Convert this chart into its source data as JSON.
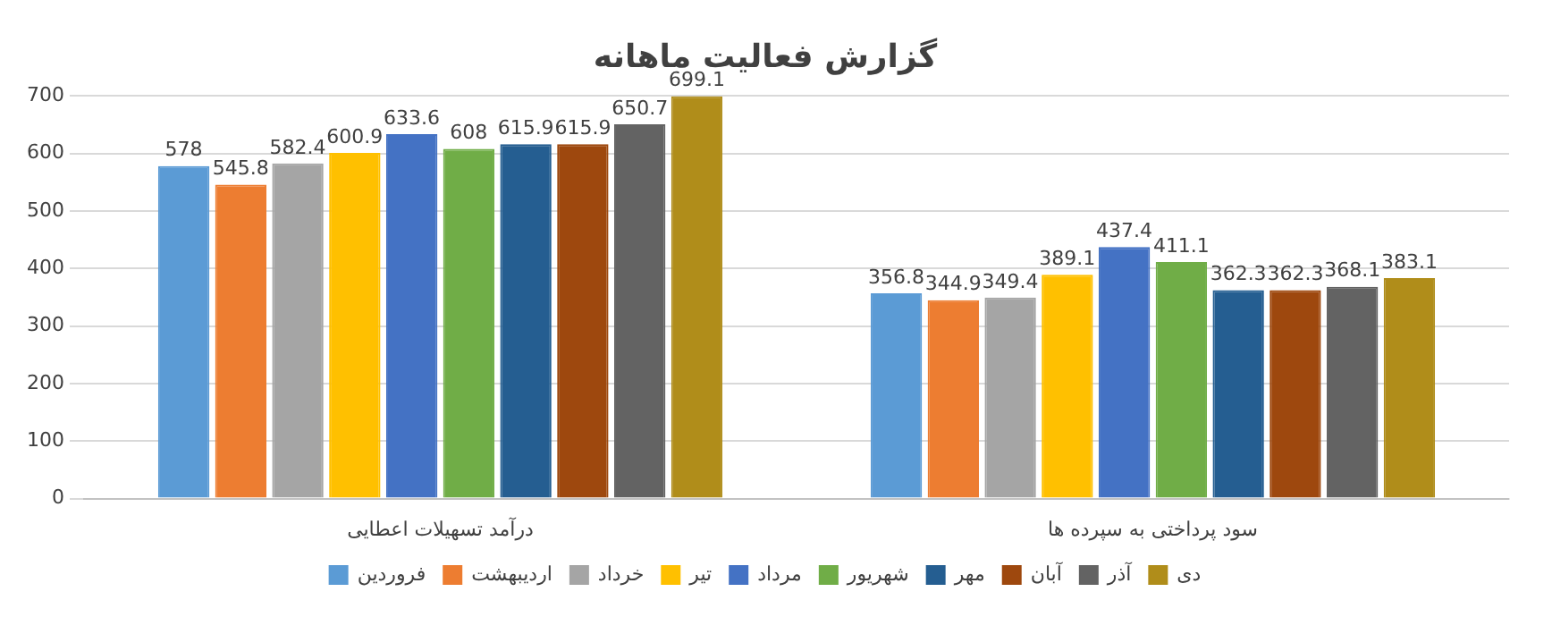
{
  "chart_data": {
    "type": "bar",
    "title": "گزارش فعالیت ماهانه",
    "categories": [
      "درآمد تسهیلات اعطایی",
      "سود پرداختی به سپرده ها"
    ],
    "series": [
      {
        "name": "فروردین",
        "color": "#5b9bd5",
        "values": [
          578,
          356.8
        ]
      },
      {
        "name": "اردیبهشت",
        "color": "#ed7d31",
        "values": [
          545.8,
          344.9
        ]
      },
      {
        "name": "خرداد",
        "color": "#a5a5a5",
        "values": [
          582.4,
          349.4
        ]
      },
      {
        "name": "تیر",
        "color": "#ffc000",
        "values": [
          600.9,
          389.1
        ]
      },
      {
        "name": "مرداد",
        "color": "#4472c4",
        "values": [
          633.6,
          437.4
        ]
      },
      {
        "name": "شهریور",
        "color": "#70ad47",
        "values": [
          608,
          411.1
        ]
      },
      {
        "name": "مهر",
        "color": "#255e91",
        "values": [
          615.9,
          362.3
        ]
      },
      {
        "name": "آبان",
        "color": "#9e480e",
        "values": [
          615.9,
          362.3
        ]
      },
      {
        "name": "آذر",
        "color": "#636363",
        "values": [
          650.7,
          368.1
        ]
      },
      {
        "name": "دی",
        "color": "#b08d1a",
        "values": [
          699.1,
          383.1
        ]
      }
    ],
    "ylim": [
      0,
      700
    ],
    "yticks": [
      0,
      100,
      200,
      300,
      400,
      500,
      600,
      700
    ],
    "grid": "y",
    "legend": "bottom",
    "data_labels": true
  }
}
